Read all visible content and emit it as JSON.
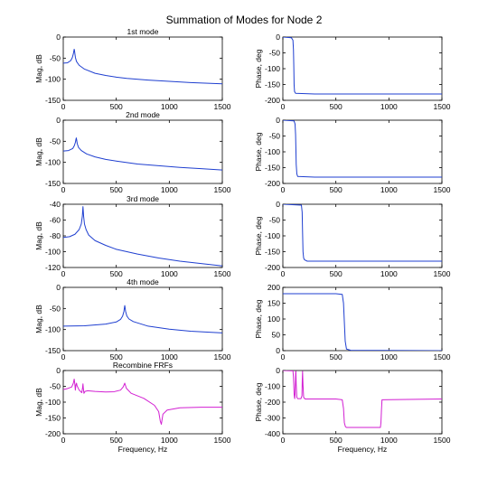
{
  "figure": {
    "title": "Summation of Modes for Node 2",
    "background": "#ffffff",
    "axis_color": "#000000"
  },
  "chart_data": [
    {
      "type": "line",
      "row": 1,
      "column": "magnitude",
      "title": "1st mode",
      "xlabel": "",
      "ylabel": "Mag, dB",
      "xlim": [
        0,
        1500
      ],
      "ylim": [
        -150,
        0
      ],
      "xticks": [
        0,
        500,
        1000,
        1500
      ],
      "yticks": [
        -150,
        -100,
        -50,
        0
      ],
      "grid": false,
      "series": [
        {
          "color": "#1f3fd0",
          "x": [
            0,
            40,
            70,
            85,
            95,
            100,
            103,
            106,
            110,
            115,
            125,
            150,
            200,
            300,
            400,
            500,
            600,
            800,
            1000,
            1200,
            1500
          ],
          "y": [
            -62,
            -61,
            -56,
            -49,
            -40,
            -33,
            -29,
            -32,
            -40,
            -49,
            -58,
            -67,
            -76,
            -86,
            -91,
            -95,
            -98,
            -102,
            -105,
            -108,
            -111
          ]
        }
      ]
    },
    {
      "type": "line",
      "row": 1,
      "column": "phase",
      "title": "",
      "xlabel": "",
      "ylabel": "Phase, deg",
      "xlim": [
        0,
        1500
      ],
      "ylim": [
        -200,
        0
      ],
      "xticks": [
        0,
        500,
        1000,
        1500
      ],
      "yticks": [
        -200,
        -150,
        -100,
        -50,
        0
      ],
      "grid": false,
      "series": [
        {
          "color": "#1f3fd0",
          "x": [
            0,
            80,
            95,
            100,
            103,
            106,
            110,
            120,
            300,
            1500
          ],
          "y": [
            0,
            -2,
            -10,
            -40,
            -90,
            -150,
            -172,
            -178,
            -180,
            -180
          ]
        }
      ]
    },
    {
      "type": "line",
      "row": 2,
      "column": "magnitude",
      "title": "2nd mode",
      "xlabel": "",
      "ylabel": "Mag, dB",
      "xlim": [
        0,
        1500
      ],
      "ylim": [
        -150,
        0
      ],
      "xticks": [
        0,
        500,
        1000,
        1500
      ],
      "yticks": [
        -150,
        -100,
        -50,
        0
      ],
      "grid": false,
      "series": [
        {
          "color": "#1f3fd0",
          "x": [
            0,
            50,
            90,
            105,
            115,
            120,
            123,
            126,
            132,
            145,
            170,
            220,
            300,
            400,
            500,
            700,
            900,
            1100,
            1300,
            1500
          ],
          "y": [
            -73,
            -72,
            -67,
            -60,
            -52,
            -45,
            -42,
            -46,
            -56,
            -65,
            -72,
            -80,
            -87,
            -93,
            -97,
            -104,
            -108,
            -112,
            -115,
            -118
          ]
        }
      ]
    },
    {
      "type": "line",
      "row": 2,
      "column": "phase",
      "title": "",
      "xlabel": "",
      "ylabel": "Phase, deg",
      "xlim": [
        0,
        1500
      ],
      "ylim": [
        -200,
        0
      ],
      "xticks": [
        0,
        500,
        1000,
        1500
      ],
      "yticks": [
        -200,
        -150,
        -100,
        -50,
        0
      ],
      "grid": false,
      "series": [
        {
          "color": "#1f3fd0",
          "x": [
            0,
            105,
            115,
            120,
            123,
            126,
            132,
            140,
            300,
            1500
          ],
          "y": [
            0,
            -2,
            -12,
            -45,
            -90,
            -140,
            -170,
            -178,
            -180,
            -180
          ]
        }
      ]
    },
    {
      "type": "line",
      "row": 3,
      "column": "magnitude",
      "title": "3rd mode",
      "xlabel": "",
      "ylabel": "Mag, dB",
      "xlim": [
        0,
        1500
      ],
      "ylim": [
        -120,
        -40
      ],
      "xticks": [
        0,
        500,
        1000,
        1500
      ],
      "yticks": [
        -120,
        -100,
        -80,
        -60,
        -40
      ],
      "grid": false,
      "series": [
        {
          "color": "#1f3fd0",
          "x": [
            0,
            60,
            110,
            150,
            170,
            180,
            186,
            192,
            200,
            215,
            240,
            300,
            400,
            500,
            700,
            900,
            1100,
            1300,
            1500
          ],
          "y": [
            -82,
            -81,
            -78,
            -72,
            -65,
            -55,
            -43,
            -55,
            -65,
            -72,
            -79,
            -86,
            -92,
            -97,
            -103,
            -108,
            -112,
            -115,
            -118
          ]
        }
      ]
    },
    {
      "type": "line",
      "row": 3,
      "column": "phase",
      "title": "",
      "xlabel": "",
      "ylabel": "Phase, deg",
      "xlim": [
        0,
        1500
      ],
      "ylim": [
        -200,
        0
      ],
      "xticks": [
        0,
        500,
        1000,
        1500
      ],
      "yticks": [
        -200,
        -150,
        -100,
        -50,
        0
      ],
      "grid": false,
      "series": [
        {
          "color": "#1f3fd0",
          "x": [
            0,
            175,
            182,
            186,
            190,
            196,
            205,
            230,
            400,
            1500
          ],
          "y": [
            0,
            -3,
            -25,
            -90,
            -150,
            -170,
            -176,
            -180,
            -180,
            -180
          ]
        }
      ]
    },
    {
      "type": "line",
      "row": 4,
      "column": "magnitude",
      "title": "4th mode",
      "xlabel": "",
      "ylabel": "Mag, dB",
      "xlim": [
        0,
        1500
      ],
      "ylim": [
        -150,
        0
      ],
      "xticks": [
        0,
        500,
        1000,
        1500
      ],
      "yticks": [
        -150,
        -100,
        -50,
        0
      ],
      "grid": false,
      "series": [
        {
          "color": "#1f3fd0",
          "x": [
            0,
            200,
            400,
            500,
            540,
            560,
            572,
            580,
            588,
            600,
            620,
            660,
            800,
            1000,
            1200,
            1500
          ],
          "y": [
            -92,
            -91,
            -87,
            -82,
            -76,
            -68,
            -57,
            -43,
            -57,
            -68,
            -75,
            -81,
            -92,
            -99,
            -104,
            -108
          ]
        }
      ]
    },
    {
      "type": "line",
      "row": 4,
      "column": "phase",
      "title": "",
      "xlabel": "",
      "ylabel": "Phase, deg",
      "xlim": [
        0,
        1500
      ],
      "ylim": [
        0,
        200
      ],
      "xticks": [
        0,
        500,
        1000,
        1500
      ],
      "yticks": [
        0,
        50,
        100,
        150,
        200
      ],
      "grid": false,
      "series": [
        {
          "color": "#1f3fd0",
          "x": [
            0,
            500,
            560,
            572,
            580,
            588,
            600,
            640,
            1500
          ],
          "y": [
            180,
            180,
            178,
            150,
            90,
            30,
            5,
            1,
            0
          ]
        }
      ]
    },
    {
      "type": "line",
      "row": 5,
      "column": "magnitude",
      "title": "Recombine FRFs",
      "xlabel": "Frequency, Hz",
      "ylabel": "Mag, dB",
      "xlim": [
        0,
        1500
      ],
      "ylim": [
        -200,
        0
      ],
      "xticks": [
        0,
        500,
        1000,
        1500
      ],
      "yticks": [
        -200,
        -150,
        -100,
        -50,
        0
      ],
      "grid": false,
      "series": [
        {
          "color": "#d21fd2",
          "x": [
            0,
            40,
            80,
            95,
            103,
            109,
            114,
            120,
            125,
            130,
            150,
            175,
            183,
            186,
            189,
            195,
            205,
            230,
            300,
            400,
            480,
            540,
            565,
            580,
            595,
            640,
            760,
            860,
            900,
            915,
            925,
            940,
            980,
            1100,
            1300,
            1500
          ],
          "y": [
            -60,
            -57,
            -52,
            -40,
            -27,
            -42,
            -62,
            -45,
            -40,
            -48,
            -62,
            -70,
            -52,
            -42,
            -55,
            -72,
            -66,
            -64,
            -66,
            -68,
            -67,
            -62,
            -52,
            -40,
            -56,
            -72,
            -88,
            -110,
            -130,
            -160,
            -170,
            -138,
            -125,
            -118,
            -116,
            -116
          ]
        }
      ]
    },
    {
      "type": "line",
      "row": 5,
      "column": "phase",
      "title": "",
      "xlabel": "Frequency, Hz",
      "ylabel": "Phase, deg",
      "xlim": [
        0,
        1500
      ],
      "ylim": [
        -400,
        0
      ],
      "xticks": [
        0,
        500,
        1000,
        1500
      ],
      "yticks": [
        -400,
        -300,
        -200,
        -100,
        0
      ],
      "grid": false,
      "series": [
        {
          "color": "#d21fd2",
          "x": [
            0,
            95,
            100,
            103,
            106,
            110,
            112,
            115,
            119,
            121,
            123,
            126,
            132,
            140,
            170,
            180,
            183,
            186,
            190,
            196,
            210,
            500,
            560,
            572,
            580,
            590,
            600,
            920,
            925,
            930,
            935,
            1500
          ],
          "y": [
            0,
            -2,
            -40,
            -90,
            -150,
            -172,
            -178,
            -150,
            -60,
            -10,
            -5,
            -90,
            -170,
            -178,
            -178,
            -160,
            -60,
            -5,
            -90,
            -170,
            -180,
            -180,
            -185,
            -240,
            -330,
            -355,
            -360,
            -360,
            -330,
            -250,
            -185,
            -180
          ]
        }
      ]
    }
  ]
}
